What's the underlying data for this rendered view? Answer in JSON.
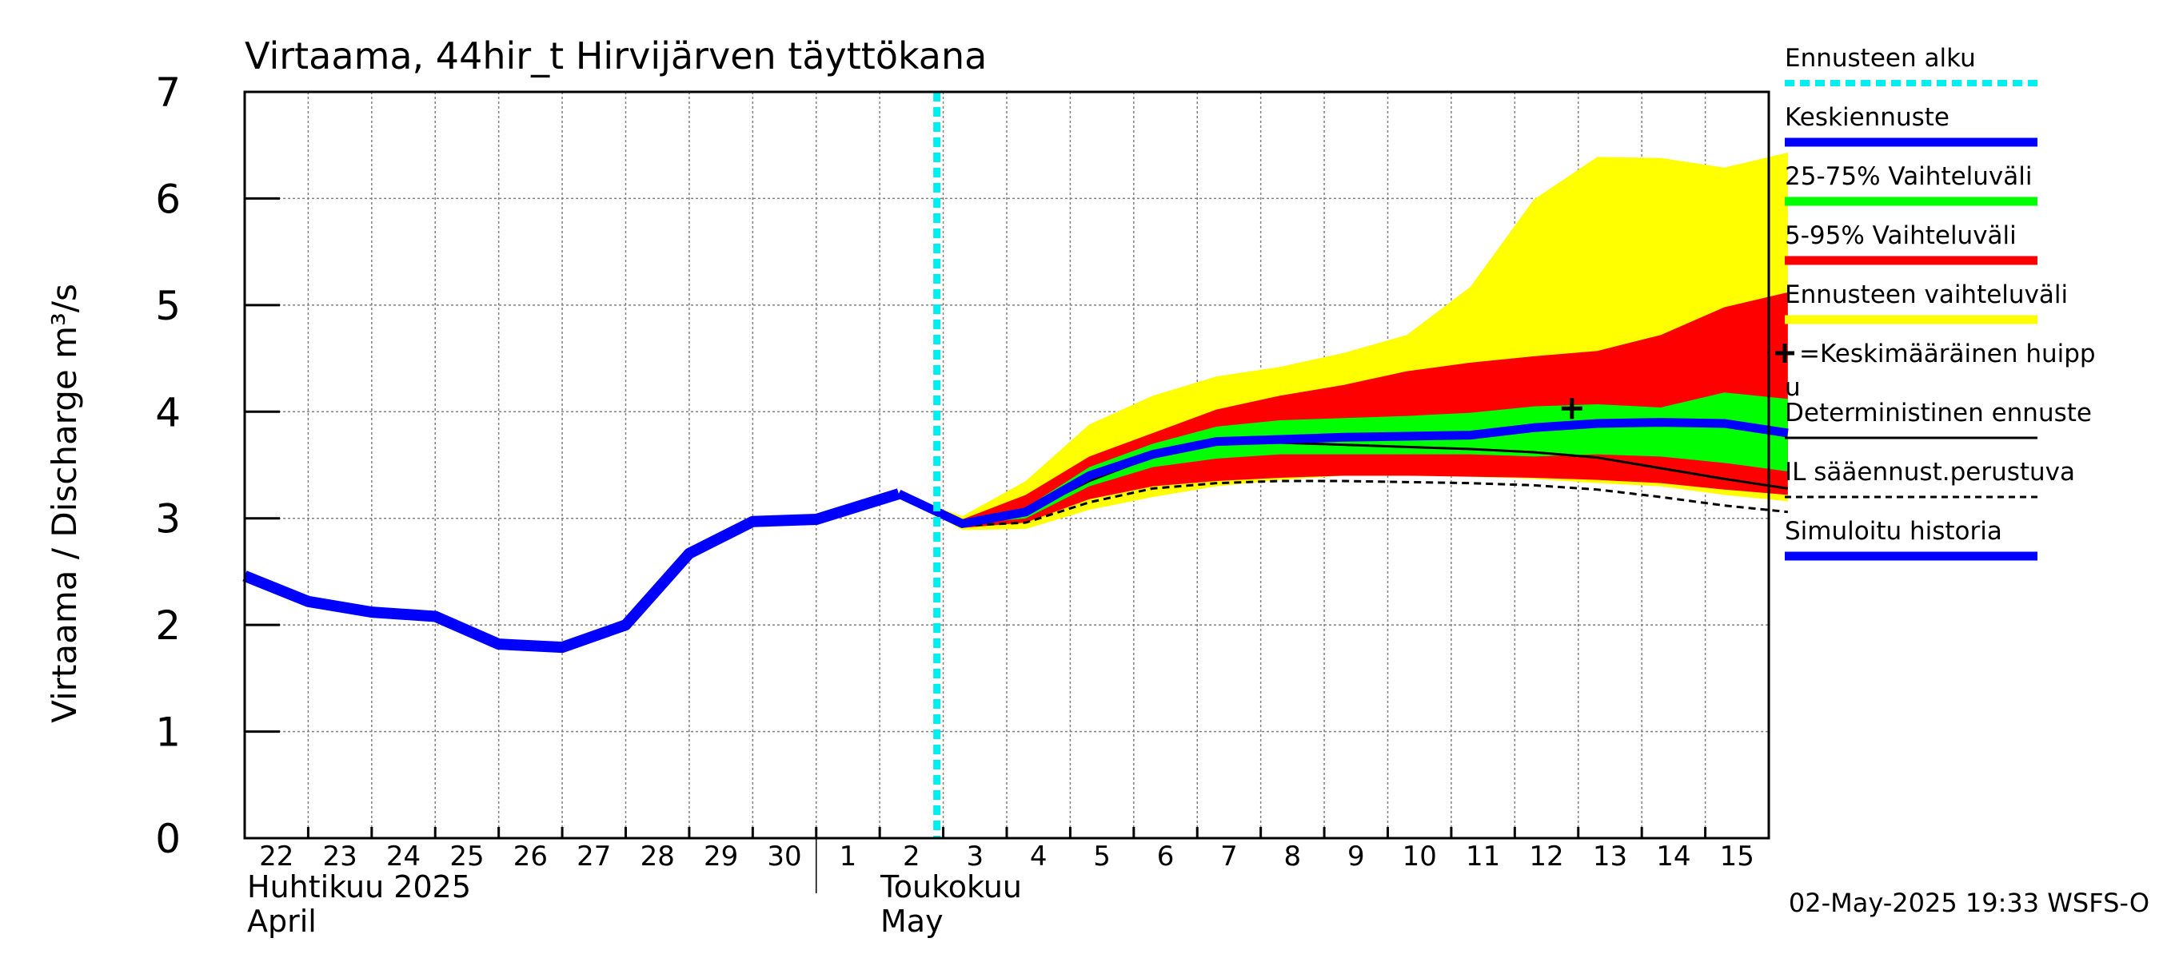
{
  "chart_data": {
    "type": "area",
    "title": "Virtaama, 44hir_t Hirvijärven täyttökana",
    "ylabel": "Virtaama / Discharge    m³/s",
    "ylim": [
      0,
      7
    ],
    "yticks": [
      "0",
      "1",
      "2",
      "3",
      "4",
      "5",
      "6",
      "7"
    ],
    "grid": true,
    "legend_position": "right",
    "x_day_labels": [
      "22",
      "23",
      "24",
      "25",
      "26",
      "27",
      "28",
      "29",
      "30",
      "1",
      "2",
      "3",
      "4",
      "5",
      "6",
      "7",
      "8",
      "9",
      "10",
      "11",
      "12",
      "13",
      "14",
      "15"
    ],
    "month_labels": [
      {
        "fi": "Huhtikuu  2025",
        "en": "April"
      },
      {
        "fi": "Toukokuu",
        "en": "May"
      }
    ],
    "forecast_start_day": 10.9,
    "series": [
      {
        "name": "Simuloitu historia",
        "color": "#0000ff",
        "x": [
          0,
          1,
          2,
          3,
          4,
          5,
          6,
          7,
          8,
          9,
          10.3
        ],
        "y": [
          2.46,
          2.22,
          2.12,
          2.08,
          1.82,
          1.79,
          2.0,
          2.67,
          2.97,
          2.99,
          3.23
        ]
      },
      {
        "name": "Keskiennuste",
        "color": "#0000ff",
        "x": [
          10.3,
          11.3,
          12.3,
          13.3,
          14.3,
          15.3,
          16.3,
          17.3,
          18.3,
          19.3,
          20.3,
          21.3,
          22.3,
          23.3,
          24.3
        ],
        "y": [
          3.23,
          2.95,
          3.06,
          3.4,
          3.6,
          3.72,
          3.74,
          3.76,
          3.77,
          3.78,
          3.85,
          3.89,
          3.9,
          3.89,
          3.8
        ]
      },
      {
        "name": "Deterministinen ennuste",
        "color": "#000000",
        "x": [
          10.3,
          11.3,
          12.3,
          13.3,
          14.3,
          15.3,
          16.3,
          17.3,
          18.3,
          19.3,
          20.3,
          21.3,
          22.3,
          23.3,
          24.3
        ],
        "y": [
          3.23,
          2.95,
          3.05,
          3.35,
          3.58,
          3.7,
          3.71,
          3.69,
          3.67,
          3.65,
          3.62,
          3.57,
          3.47,
          3.37,
          3.28
        ]
      },
      {
        "name": "IL sääennust.perustuva",
        "color": "#000000",
        "x": [
          10.3,
          11.3,
          12.3,
          13.3,
          14.3,
          15.3,
          16.3,
          17.3,
          18.3,
          19.3,
          20.3,
          21.3,
          22.3,
          23.3,
          24.3
        ],
        "y": [
          3.23,
          2.93,
          2.96,
          3.15,
          3.28,
          3.33,
          3.35,
          3.35,
          3.34,
          3.33,
          3.31,
          3.27,
          3.2,
          3.12,
          3.06
        ]
      }
    ],
    "bands": [
      {
        "name": "Ennusteen vaihteluväli",
        "color": "#ffff00",
        "x": [
          10.3,
          11.3,
          12.3,
          13.3,
          14.3,
          15.3,
          16.3,
          17.3,
          18.3,
          19.3,
          20.3,
          21.3,
          22.3,
          23.3,
          24.3
        ],
        "low": [
          3.23,
          2.89,
          2.9,
          3.08,
          3.2,
          3.3,
          3.36,
          3.4,
          3.4,
          3.39,
          3.37,
          3.33,
          3.3,
          3.22,
          3.16
        ],
        "high": [
          3.23,
          3.02,
          3.35,
          3.88,
          4.15,
          4.33,
          4.42,
          4.55,
          4.72,
          5.17,
          5.99,
          6.39,
          6.38,
          6.29,
          6.43
        ]
      },
      {
        "name": "5-95% Vaihteluväli",
        "color": "#ff0000",
        "x": [
          10.3,
          11.3,
          12.3,
          13.3,
          14.3,
          15.3,
          16.3,
          17.3,
          18.3,
          19.3,
          20.3,
          21.3,
          22.3,
          23.3,
          24.3
        ],
        "low": [
          3.23,
          2.91,
          2.96,
          3.18,
          3.3,
          3.35,
          3.38,
          3.4,
          3.4,
          3.39,
          3.38,
          3.36,
          3.33,
          3.27,
          3.22
        ],
        "high": [
          3.23,
          2.99,
          3.22,
          3.58,
          3.8,
          4.02,
          4.15,
          4.25,
          4.38,
          4.46,
          4.52,
          4.57,
          4.72,
          4.98,
          5.12
        ]
      },
      {
        "name": "25-75% Vaihteluväli",
        "color": "#00ff00",
        "x": [
          10.3,
          11.3,
          12.3,
          13.3,
          14.3,
          15.3,
          16.3,
          17.3,
          18.3,
          19.3,
          20.3,
          21.3,
          22.3,
          23.3,
          24.3
        ],
        "low": [
          3.23,
          2.94,
          3.0,
          3.3,
          3.48,
          3.56,
          3.6,
          3.6,
          3.6,
          3.6,
          3.58,
          3.6,
          3.58,
          3.52,
          3.44
        ],
        "high": [
          3.23,
          2.97,
          3.1,
          3.48,
          3.7,
          3.86,
          3.92,
          3.94,
          3.96,
          3.99,
          4.05,
          4.07,
          4.04,
          4.18,
          4.12
        ]
      }
    ],
    "peak_marker": {
      "name": "=Keskimääräinen huippu",
      "x": 20.9,
      "y": 4.03
    }
  },
  "legend": [
    {
      "label": "Ennusteen alku",
      "color": "#00eeee",
      "style": "dotted-thick"
    },
    {
      "label": "Keskiennuste",
      "color": "#0000ff",
      "style": "thick"
    },
    {
      "label": "25-75% Vaihteluväli",
      "color": "#00ff00",
      "style": "thick"
    },
    {
      "label": "5-95% Vaihteluväli",
      "color": "#ff0000",
      "style": "thick"
    },
    {
      "label": "Ennusteen vaihteluväli",
      "color": "#ffff00",
      "style": "thick"
    },
    {
      "label": "✚=Keskimääräinen huippu",
      "color": "#000000",
      "style": "none"
    },
    {
      "label": "Deterministinen ennuste",
      "color": "#000000",
      "style": "thin"
    },
    {
      "label": "IL sääennust.perustuva",
      "color": "#000000",
      "style": "dashed"
    },
    {
      "label": "Simuloitu historia",
      "color": "#0000ff",
      "style": "thick"
    }
  ],
  "footer": "02-May-2025 19:33 WSFS-O"
}
